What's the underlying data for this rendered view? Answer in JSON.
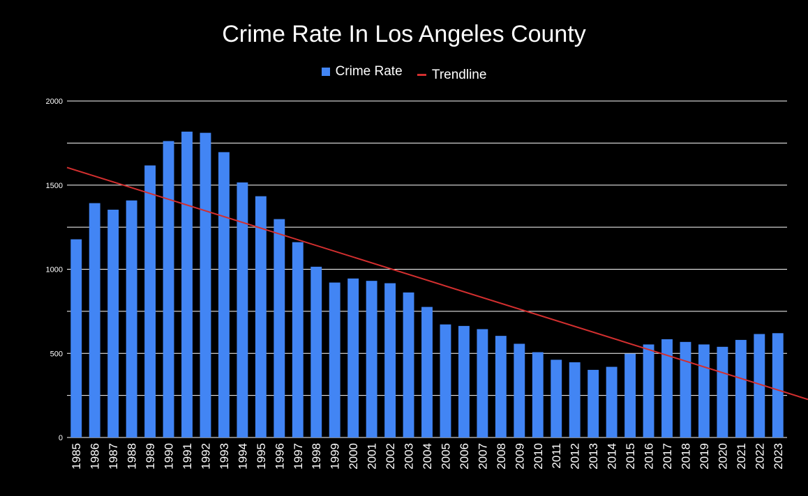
{
  "chart_data": {
    "type": "bar",
    "title": "Crime Rate In Los Angeles County",
    "categories": [
      "1985",
      "1986",
      "1987",
      "1988",
      "1989",
      "1990",
      "1991",
      "1992",
      "1993",
      "1994",
      "1995",
      "1996",
      "1997",
      "1998",
      "1999",
      "2000",
      "2001",
      "2002",
      "2003",
      "2004",
      "2005",
      "2006",
      "2007",
      "2008",
      "2009",
      "2010",
      "2011",
      "2012",
      "2013",
      "2014",
      "2015",
      "2016",
      "2017",
      "2018",
      "2019",
      "2020",
      "2021",
      "2022",
      "2023"
    ],
    "series": [
      {
        "name": "Crime Rate",
        "type": "bar",
        "color": "#4285f4",
        "values": [
          1178,
          1393,
          1354,
          1409,
          1617,
          1762,
          1818,
          1811,
          1696,
          1516,
          1434,
          1298,
          1161,
          1015,
          921,
          945,
          931,
          917,
          862,
          776,
          672,
          663,
          644,
          604,
          557,
          507,
          462,
          447,
          402,
          420,
          498,
          553,
          584,
          568,
          553,
          539,
          580,
          615,
          620
        ]
      },
      {
        "name": "Trendline",
        "type": "line",
        "color": "#d32f2f",
        "start": 1605,
        "end": 290
      }
    ],
    "y_ticks": [
      0,
      500,
      1000,
      1500,
      2000
    ],
    "ylim": [
      0,
      2000
    ],
    "grid": true,
    "legend_position": "top-center",
    "background": "#000000"
  }
}
